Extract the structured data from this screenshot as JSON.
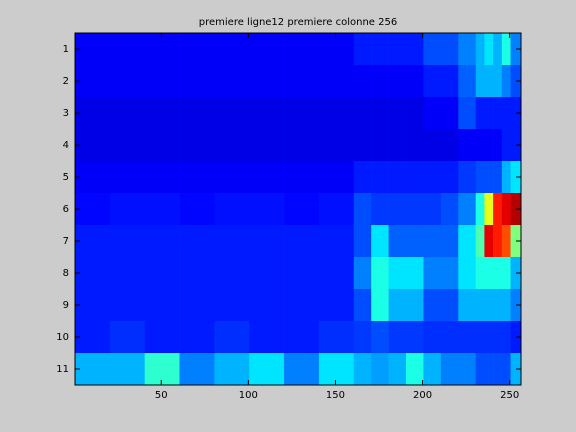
{
  "chart_data": {
    "type": "heatmap",
    "title": "premiere ligne12 premiere colonne 256",
    "colormap": "jet",
    "clim": [
      0,
      1
    ],
    "bins": [
      0.5,
      20.5,
      40.5,
      60.5,
      80.5,
      100.5,
      120.5,
      140.5,
      160.5,
      170.5,
      180.5,
      190.5,
      200.5,
      210.5,
      220.5,
      230.5,
      235.5,
      240.5,
      245.5,
      250.5,
      256.5
    ],
    "y": [
      1,
      2,
      3,
      4,
      5,
      6,
      7,
      8,
      9,
      10,
      11
    ],
    "values": [
      [
        0.12,
        0.12,
        0.12,
        0.12,
        0.12,
        0.12,
        0.12,
        0.12,
        0.15,
        0.15,
        0.15,
        0.15,
        0.2,
        0.2,
        0.25,
        0.3,
        0.35,
        0.3,
        0.4,
        0.25
      ],
      [
        0.12,
        0.12,
        0.12,
        0.12,
        0.12,
        0.12,
        0.12,
        0.12,
        0.12,
        0.12,
        0.12,
        0.12,
        0.15,
        0.15,
        0.22,
        0.3,
        0.3,
        0.3,
        0.25,
        0.2
      ],
      [
        0.1,
        0.1,
        0.1,
        0.1,
        0.1,
        0.1,
        0.1,
        0.1,
        0.1,
        0.1,
        0.1,
        0.1,
        0.12,
        0.12,
        0.2,
        0.15,
        0.15,
        0.15,
        0.15,
        0.15
      ],
      [
        0.1,
        0.1,
        0.1,
        0.1,
        0.1,
        0.1,
        0.1,
        0.1,
        0.1,
        0.1,
        0.1,
        0.1,
        0.1,
        0.1,
        0.12,
        0.12,
        0.12,
        0.12,
        0.15,
        0.15
      ],
      [
        0.12,
        0.12,
        0.12,
        0.12,
        0.12,
        0.12,
        0.12,
        0.12,
        0.15,
        0.15,
        0.15,
        0.15,
        0.15,
        0.15,
        0.18,
        0.2,
        0.2,
        0.2,
        0.3,
        0.35
      ],
      [
        0.13,
        0.14,
        0.14,
        0.13,
        0.14,
        0.14,
        0.13,
        0.14,
        0.2,
        0.18,
        0.18,
        0.18,
        0.18,
        0.2,
        0.25,
        0.4,
        0.6,
        0.85,
        0.9,
        0.95
      ],
      [
        0.15,
        0.15,
        0.15,
        0.15,
        0.15,
        0.15,
        0.15,
        0.15,
        0.2,
        0.35,
        0.22,
        0.22,
        0.22,
        0.22,
        0.35,
        0.45,
        0.9,
        0.85,
        0.8,
        0.5
      ],
      [
        0.15,
        0.15,
        0.15,
        0.15,
        0.15,
        0.15,
        0.15,
        0.15,
        0.25,
        0.4,
        0.35,
        0.35,
        0.25,
        0.25,
        0.35,
        0.4,
        0.4,
        0.4,
        0.4,
        0.3
      ],
      [
        0.15,
        0.15,
        0.15,
        0.15,
        0.15,
        0.15,
        0.15,
        0.15,
        0.2,
        0.4,
        0.3,
        0.3,
        0.2,
        0.2,
        0.3,
        0.3,
        0.3,
        0.3,
        0.3,
        0.25
      ],
      [
        0.15,
        0.17,
        0.15,
        0.15,
        0.17,
        0.15,
        0.15,
        0.17,
        0.18,
        0.2,
        0.18,
        0.18,
        0.17,
        0.17,
        0.17,
        0.17,
        0.17,
        0.17,
        0.17,
        0.15
      ],
      [
        0.3,
        0.3,
        0.42,
        0.25,
        0.3,
        0.35,
        0.25,
        0.35,
        0.3,
        0.28,
        0.3,
        0.4,
        0.3,
        0.25,
        0.25,
        0.2,
        0.2,
        0.2,
        0.2,
        0.3
      ]
    ],
    "xlim": [
      0.5,
      256.5
    ],
    "ylim": [
      0.5,
      11.5
    ],
    "xticks": [
      50,
      100,
      150,
      200,
      250
    ],
    "yticks": [
      1,
      2,
      3,
      4,
      5,
      6,
      7,
      8,
      9,
      10,
      11
    ],
    "y_reversed": true
  }
}
